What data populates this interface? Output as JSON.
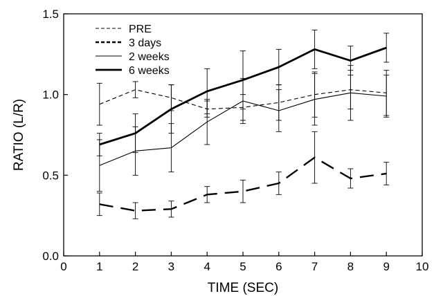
{
  "chart_data": {
    "type": "line",
    "title": "",
    "xlabel": "TIME (SEC)",
    "ylabel": "RATIO (L/R)",
    "xlim": [
      0,
      10
    ],
    "ylim": [
      0.0,
      1.5
    ],
    "x_ticks": [
      0,
      1,
      2,
      3,
      4,
      5,
      6,
      7,
      8,
      9,
      10
    ],
    "x_tick_labels": [
      "0",
      "1",
      "2",
      "3",
      "4",
      "5",
      "6",
      "7",
      "8",
      "9",
      "10"
    ],
    "y_ticks": [
      0.0,
      0.5,
      1.0,
      1.5
    ],
    "y_tick_labels": [
      "0.0",
      "0.5",
      "1.0",
      "1.5"
    ],
    "grid": false,
    "legend_position": "top-left",
    "x": [
      1,
      2,
      3,
      4,
      5,
      6,
      7,
      8,
      9
    ],
    "series": [
      {
        "name": "PRE",
        "style": "short-dash-thin",
        "values": [
          0.94,
          1.03,
          0.98,
          0.91,
          0.92,
          0.95,
          1.0,
          1.03,
          1.01
        ],
        "error": [
          0.13,
          0.05,
          0.08,
          0.05,
          0.08,
          0.11,
          0.14,
          0.12,
          0.14
        ]
      },
      {
        "name": "3 days",
        "style": "long-dash-thick",
        "values": [
          0.32,
          0.28,
          0.29,
          0.38,
          0.4,
          0.45,
          0.61,
          0.48,
          0.51
        ],
        "error": [
          0.07,
          0.05,
          0.05,
          0.05,
          0.07,
          0.07,
          0.16,
          0.06,
          0.07
        ]
      },
      {
        "name": "2 weeks",
        "style": "solid-thin",
        "values": [
          0.56,
          0.65,
          0.67,
          0.83,
          0.96,
          0.9,
          0.97,
          1.01,
          0.99
        ],
        "error": [
          0.16,
          0.15,
          0.15,
          0.14,
          0.14,
          0.13,
          0.16,
          0.17,
          0.13
        ]
      },
      {
        "name": "6 weeks",
        "style": "solid-thick",
        "values": [
          0.69,
          0.76,
          0.91,
          1.02,
          1.09,
          1.17,
          1.28,
          1.21,
          1.29
        ],
        "error": [
          0.07,
          0.12,
          0.15,
          0.14,
          0.18,
          0.11,
          0.12,
          0.09,
          0.09
        ]
      }
    ]
  }
}
